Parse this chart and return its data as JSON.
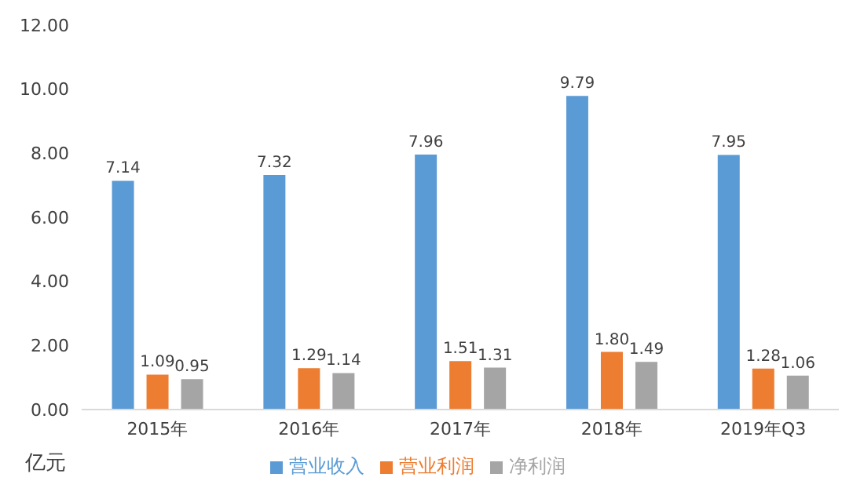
{
  "chart_data": {
    "type": "bar",
    "ylabel": "亿元",
    "categories": [
      "2015年",
      "2016年",
      "2017年",
      "2018年",
      "2019年Q3"
    ],
    "series": [
      {
        "name": "营业收入",
        "color": "#5b9bd5",
        "values": [
          7.14,
          7.32,
          7.96,
          9.79,
          7.95
        ],
        "value_labels": [
          "7.14",
          "7.32",
          "7.96",
          "9.79",
          "7.95"
        ]
      },
      {
        "name": "营业利润",
        "color": "#ed7d31",
        "values": [
          1.09,
          1.29,
          1.51,
          1.8,
          1.28
        ],
        "value_labels": [
          "1.09",
          "1.29",
          "1.51",
          "1.80",
          "1.28"
        ]
      },
      {
        "name": "净利润",
        "color": "#a5a5a5",
        "values": [
          0.95,
          1.14,
          1.31,
          1.49,
          1.06
        ],
        "value_labels": [
          "0.95",
          "1.14",
          "1.31",
          "1.49",
          "1.06"
        ]
      }
    ],
    "ylim": [
      0,
      12
    ],
    "yticks": [
      {
        "value": 0,
        "label": "0.00"
      },
      {
        "value": 2,
        "label": "2.00"
      },
      {
        "value": 4,
        "label": "4.00"
      },
      {
        "value": 6,
        "label": "6.00"
      },
      {
        "value": 8,
        "label": "8.00"
      },
      {
        "value": 10,
        "label": "10.00"
      },
      {
        "value": 12,
        "label": "12.00"
      }
    ],
    "grid": false,
    "legend": "bottom"
  }
}
